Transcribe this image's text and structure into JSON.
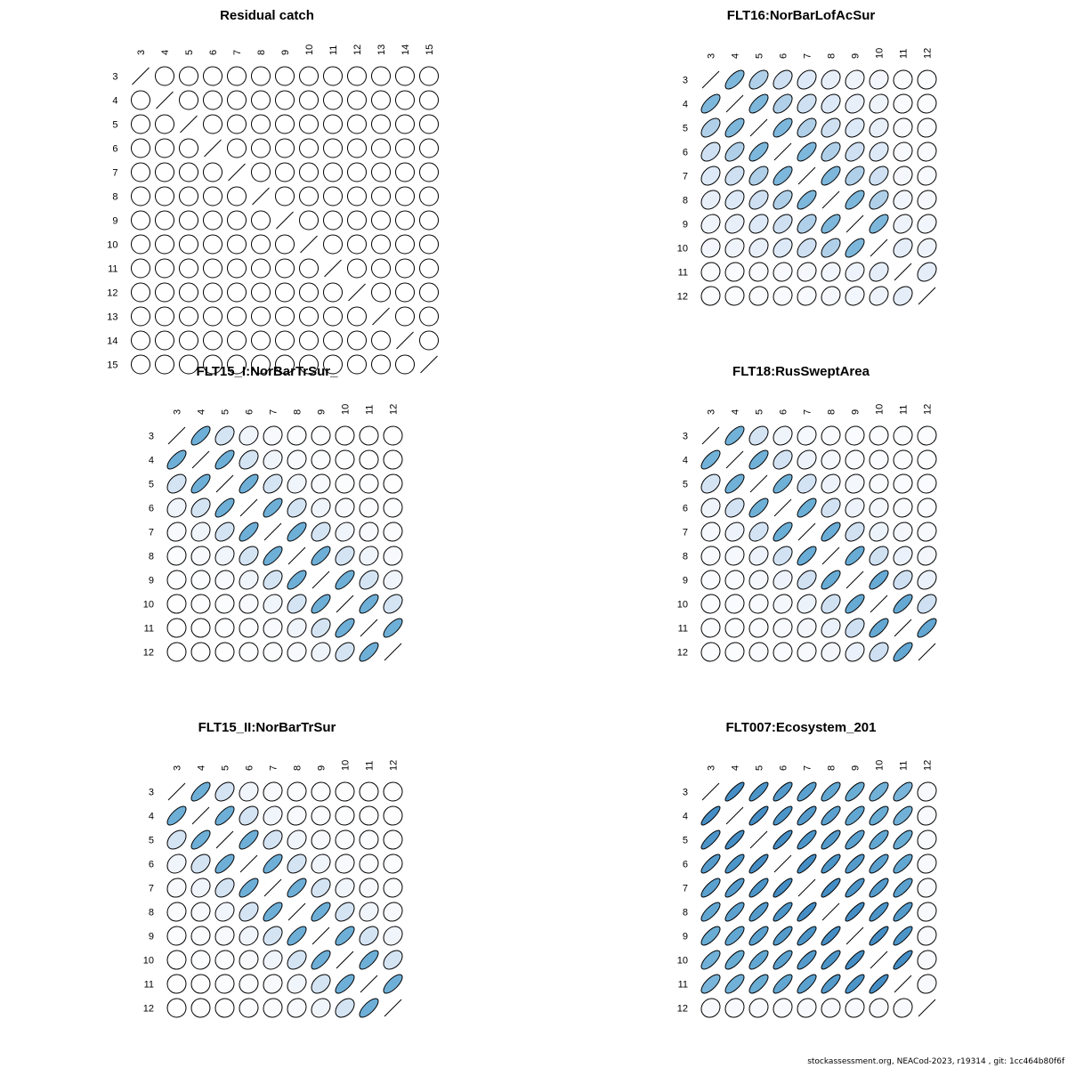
{
  "footer": "stockassessment.org, NEACod-2023, r19314 , git: 1cc464b80f6f",
  "chart_data": [
    {
      "type": "heatmap",
      "title": "Residual catch",
      "ages": [
        "3",
        "4",
        "5",
        "6",
        "7",
        "8",
        "9",
        "10",
        "11",
        "12",
        "13",
        "14",
        "15"
      ],
      "pattern": "none",
      "strength": 0,
      "band": 0
    },
    {
      "type": "heatmap",
      "title": "FLT16:NorBarLofAcSur",
      "ages": [
        "3",
        "4",
        "5",
        "6",
        "7",
        "8",
        "9",
        "10",
        "11",
        "12"
      ],
      "pattern": "ac16",
      "strength": 0.85,
      "band": 0
    },
    {
      "type": "heatmap",
      "title": "FLT15_I:NorBarTrSur_",
      "ages": [
        "3",
        "4",
        "5",
        "6",
        "7",
        "8",
        "9",
        "10",
        "11",
        "12"
      ],
      "pattern": "ar",
      "strength": 0.72,
      "band": 0
    },
    {
      "type": "heatmap",
      "title": "FLT18:RusSweptArea",
      "ages": [
        "3",
        "4",
        "5",
        "6",
        "7",
        "8",
        "9",
        "10",
        "11",
        "12"
      ],
      "pattern": "ar",
      "strength": 0.7,
      "band": 0.06
    },
    {
      "type": "heatmap",
      "title": "FLT15_II:NorBarTrSur",
      "ages": [
        "3",
        "4",
        "5",
        "6",
        "7",
        "8",
        "9",
        "10",
        "11",
        "12"
      ],
      "pattern": "ar",
      "strength": 0.72,
      "band": 0
    },
    {
      "type": "heatmap",
      "title": "FLT007:Ecosystem_201",
      "ages": [
        "3",
        "4",
        "5",
        "6",
        "7",
        "8",
        "9",
        "10",
        "11",
        "12"
      ],
      "pattern": "eco",
      "strength": 0.88,
      "band": 0
    }
  ]
}
